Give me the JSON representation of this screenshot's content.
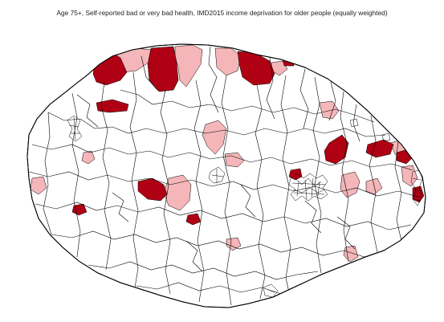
{
  "map": {
    "title": "Age 75+, Self-reported bad or very bad health, IMD2015 income deprivation for older people (equally weighted)",
    "colors": {
      "background": "#ffffff",
      "boundary": "#000000",
      "low": "#ffffff",
      "medium": "#f4b6b9",
      "high": "#b00014"
    }
  }
}
